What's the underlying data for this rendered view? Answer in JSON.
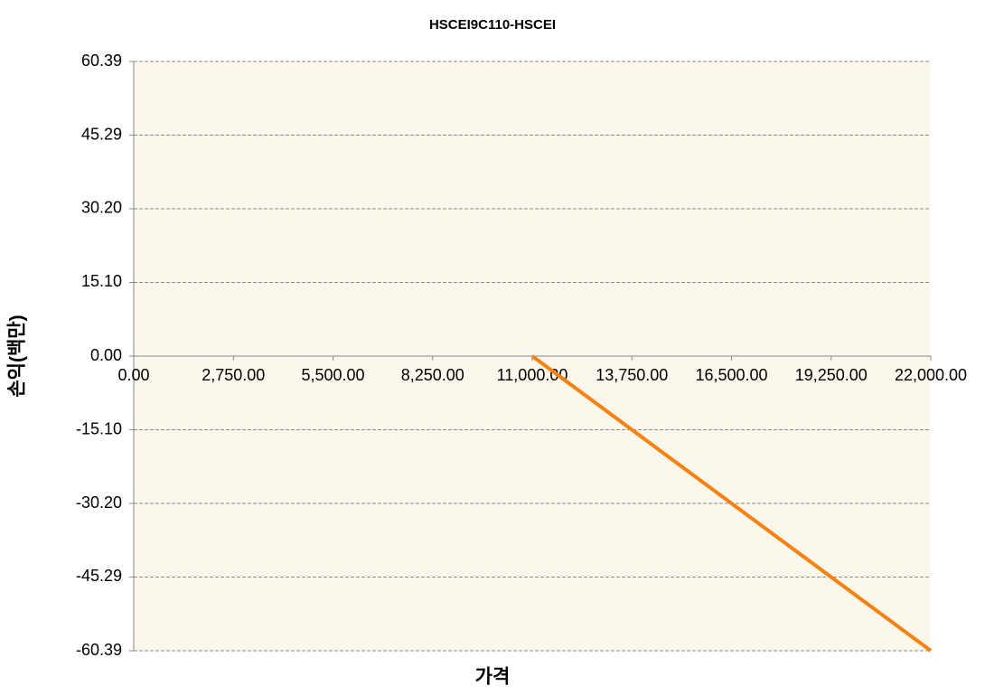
{
  "chart_data": {
    "type": "line",
    "title": "HSCEI9C110-HSCEI",
    "xlabel": "가격",
    "ylabel": "손익(백만)",
    "x": [
      11000,
      22000
    ],
    "values": [
      0,
      -60.39
    ],
    "color": "#f7820f",
    "xlim": [
      0,
      22000
    ],
    "xticks": [
      {
        "value": 0,
        "label": "0.00"
      },
      {
        "value": 2750,
        "label": "2,750.00"
      },
      {
        "value": 5500,
        "label": "5,500.00"
      },
      {
        "value": 8250,
        "label": "8,250.00"
      },
      {
        "value": 11000,
        "label": "11,000.00"
      },
      {
        "value": 13750,
        "label": "13,750.00"
      },
      {
        "value": 16500,
        "label": "16,500.00"
      },
      {
        "value": 19250,
        "label": "19,250.00"
      },
      {
        "value": 22000,
        "label": "22,000.00"
      }
    ],
    "ylim": [
      -60.39,
      60.39
    ],
    "yticks": [
      -60.39,
      -45.29,
      {
        "value": -30.2,
        "label": "-30.20"
      },
      {
        "value": -15.1,
        "label": "-15.10"
      },
      {
        "value": 0,
        "label": "0.00"
      },
      {
        "value": 15.1,
        "label": "15.10"
      },
      {
        "value": 30.2,
        "label": "30.20"
      },
      45.29,
      60.39
    ],
    "grid": true
  }
}
